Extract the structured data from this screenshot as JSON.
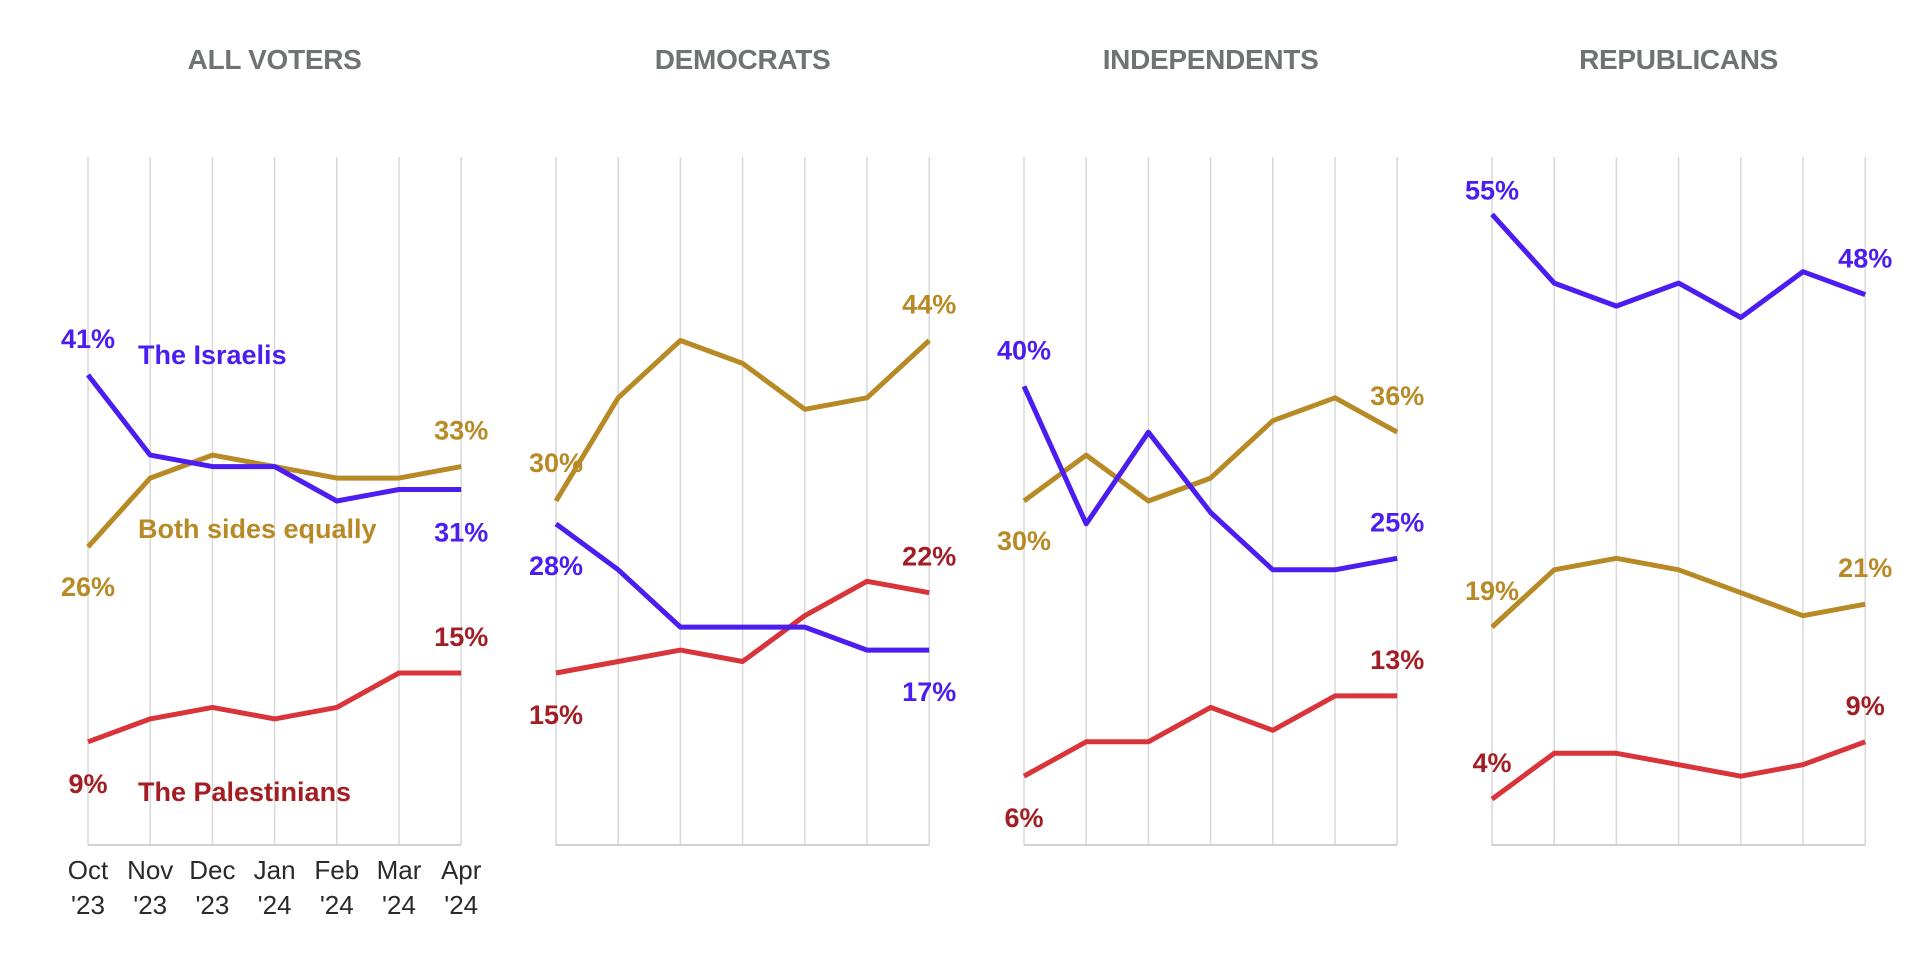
{
  "colors": {
    "israelis": "#4b1df0",
    "both": "#b88a26",
    "palestinians": "#d8343a",
    "palestinians_label": "#a21d24",
    "title": "#6f7473"
  },
  "series_names": {
    "israelis": "The Israelis",
    "both": "Both sides equally",
    "palestinians": "The Palestinians"
  },
  "chart_data": [
    {
      "type": "line",
      "title": "ALL VOTERS",
      "x": [
        "Oct '23",
        "Nov '23",
        "Dec '23",
        "Jan '24",
        "Feb '24",
        "Mar '24",
        "Apr '24"
      ],
      "ylim": [
        0,
        60
      ],
      "grid": true,
      "series": [
        {
          "key": "israelis",
          "name": "The Israelis",
          "values": [
            41,
            34,
            33,
            33,
            30,
            31,
            31
          ],
          "start_label": "41%",
          "end_label": "31%"
        },
        {
          "key": "both",
          "name": "Both sides equally",
          "values": [
            26,
            32,
            34,
            33,
            32,
            32,
            33
          ],
          "start_label": "26%",
          "end_label": "33%"
        },
        {
          "key": "palestinians",
          "name": "The Palestinians",
          "values": [
            9,
            11,
            12,
            11,
            12,
            15,
            15
          ],
          "start_label": "9%",
          "end_label": "15%"
        }
      ]
    },
    {
      "type": "line",
      "title": "DEMOCRATS",
      "x": [
        "Oct '23",
        "Nov '23",
        "Dec '23",
        "Jan '24",
        "Feb '24",
        "Mar '24",
        "Apr '24"
      ],
      "ylim": [
        0,
        60
      ],
      "grid": true,
      "series": [
        {
          "key": "israelis",
          "values": [
            28,
            24,
            19,
            19,
            19,
            17,
            17
          ],
          "start_label": "28%",
          "end_label": "17%"
        },
        {
          "key": "both",
          "values": [
            30,
            39,
            44,
            42,
            38,
            39,
            44
          ],
          "start_label": "30%",
          "end_label": "44%"
        },
        {
          "key": "palestinians",
          "values": [
            15,
            16,
            17,
            16,
            20,
            23,
            22
          ],
          "start_label": "15%",
          "end_label": "22%"
        }
      ]
    },
    {
      "type": "line",
      "title": "INDEPENDENTS",
      "x": [
        "Oct '23",
        "Nov '23",
        "Dec '23",
        "Jan '24",
        "Feb '24",
        "Mar '24",
        "Apr '24"
      ],
      "ylim": [
        0,
        60
      ],
      "grid": true,
      "series": [
        {
          "key": "israelis",
          "values": [
            40,
            28,
            36,
            29,
            24,
            24,
            25
          ],
          "start_label": "40%",
          "end_label": "25%"
        },
        {
          "key": "both",
          "values": [
            30,
            34,
            30,
            32,
            37,
            39,
            36
          ],
          "start_label": "30%",
          "end_label": "36%"
        },
        {
          "key": "palestinians",
          "values": [
            6,
            9,
            9,
            12,
            10,
            13,
            13
          ],
          "start_label": "6%",
          "end_label": "13%"
        }
      ]
    },
    {
      "type": "line",
      "title": "REPUBLICANS",
      "x": [
        "Oct '23",
        "Nov '23",
        "Dec '23",
        "Jan '24",
        "Feb '24",
        "Mar '24",
        "Apr '24"
      ],
      "ylim": [
        0,
        60
      ],
      "grid": true,
      "series": [
        {
          "key": "israelis",
          "values": [
            55,
            49,
            47,
            49,
            46,
            50,
            48
          ],
          "start_label": "55%",
          "end_label": "48%"
        },
        {
          "key": "both",
          "values": [
            19,
            24,
            25,
            24,
            22,
            20,
            21
          ],
          "start_label": "19%",
          "end_label": "21%"
        },
        {
          "key": "palestinians",
          "values": [
            4,
            8,
            8,
            7,
            6,
            7,
            9
          ],
          "start_label": "4%",
          "end_label": "9%"
        }
      ]
    }
  ]
}
